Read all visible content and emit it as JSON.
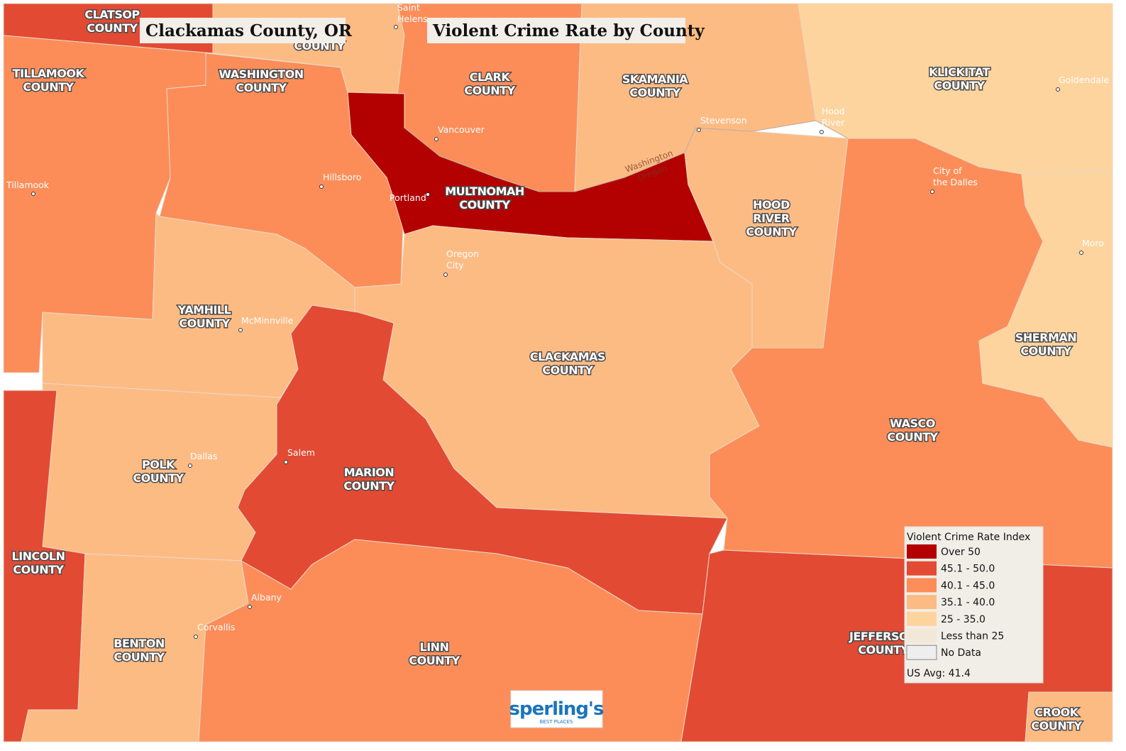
{
  "header": {
    "title": "Clackamas County, OR",
    "subtitle": "Violent Crime Rate by County"
  },
  "counties": [
    {
      "label": [
        "CLATSOP",
        "COUNTY"
      ],
      "color": "#e34a33"
    },
    {
      "label": [
        "COUNTY"
      ],
      "color": "#fdbb84"
    },
    {
      "label": [
        "TILLAMOOK",
        "COUNTY"
      ],
      "color": "#fc8d59"
    },
    {
      "label": [
        "WASHINGTON",
        "COUNTY"
      ],
      "color": "#fc8d59"
    },
    {
      "label": [
        "CLARK",
        "COUNTY"
      ],
      "color": "#fc8d59"
    },
    {
      "label": [
        "SKAMANIA",
        "COUNTY"
      ],
      "color": "#fdbb84"
    },
    {
      "label": [
        "KLICKITAT",
        "COUNTY"
      ],
      "color": "#fdd49e"
    },
    {
      "label": [
        "MULTNOMAH",
        "COUNTY"
      ],
      "color": "#b30000"
    },
    {
      "label": [
        "HOOD",
        "RIVER",
        "COUNTY"
      ],
      "color": "#fdbb84"
    },
    {
      "label": [
        "YAMHILL",
        "COUNTY"
      ],
      "color": "#fdbb84"
    },
    {
      "label": [
        "CLACKAMAS",
        "COUNTY"
      ],
      "color": "#fdbb84"
    },
    {
      "label": [
        "WASCO",
        "COUNTY"
      ],
      "color": "#fc8d59"
    },
    {
      "label": [
        "SHERMAN",
        "COUNTY"
      ],
      "color": "#fdd49e"
    },
    {
      "label": [
        "POLK",
        "COUNTY"
      ],
      "color": "#fdbb84"
    },
    {
      "label": [
        "MARION",
        "COUNTY"
      ],
      "color": "#e34a33"
    },
    {
      "label": [
        "LINCOLN",
        "COUNTY"
      ],
      "color": "#e34a33"
    },
    {
      "label": [
        "BENTON",
        "COUNTY"
      ],
      "color": "#fdbb84"
    },
    {
      "label": [
        "LINN",
        "COUNTY"
      ],
      "color": "#fc8d59"
    },
    {
      "label": [
        "JEFFERSON",
        "COUNTY"
      ],
      "color": "#e34a33"
    },
    {
      "label": [
        "CROOK",
        "COUNTY"
      ],
      "color": "#fdbb84"
    }
  ],
  "cities": [
    {
      "label": [
        "Saint",
        "Helens"
      ]
    },
    {
      "label": [
        "Vancouver"
      ]
    },
    {
      "label": [
        "Stevenson"
      ]
    },
    {
      "label": [
        "Hood",
        "River"
      ]
    },
    {
      "label": [
        "Goldendale"
      ]
    },
    {
      "label": [
        "Tillamook"
      ]
    },
    {
      "label": [
        "Hillsboro"
      ]
    },
    {
      "label": [
        "Portland"
      ]
    },
    {
      "label": [
        "City of",
        "the Dalles"
      ]
    },
    {
      "label": [
        "Moro"
      ]
    },
    {
      "label": [
        "Oregon",
        "City"
      ]
    },
    {
      "label": [
        "McMinnville"
      ]
    },
    {
      "label": [
        "Salem"
      ]
    },
    {
      "label": [
        "Dallas"
      ]
    },
    {
      "label": [
        "Albany"
      ]
    },
    {
      "label": [
        "Corvallis"
      ]
    }
  ],
  "state_labels": [
    "Washington",
    "Oregon"
  ],
  "legend": {
    "title": "Violent Crime Rate Index",
    "items": [
      {
        "label": "Over 50",
        "color": "#b30000"
      },
      {
        "label": "45.1 - 50.0",
        "color": "#e34a33"
      },
      {
        "label": "40.1 - 45.0",
        "color": "#fc8d59"
      },
      {
        "label": "35.1 - 40.0",
        "color": "#fdbb84"
      },
      {
        "label": "25 - 35.0",
        "color": "#fdd49e"
      },
      {
        "label": "Less than 25",
        "color": "#f1e8d8"
      },
      {
        "label": "No Data",
        "color": "#eeeeee"
      }
    ],
    "note": "US Avg: 41.4"
  },
  "logo": {
    "name": "sperling's",
    "tagline": "BEST PLACES"
  }
}
